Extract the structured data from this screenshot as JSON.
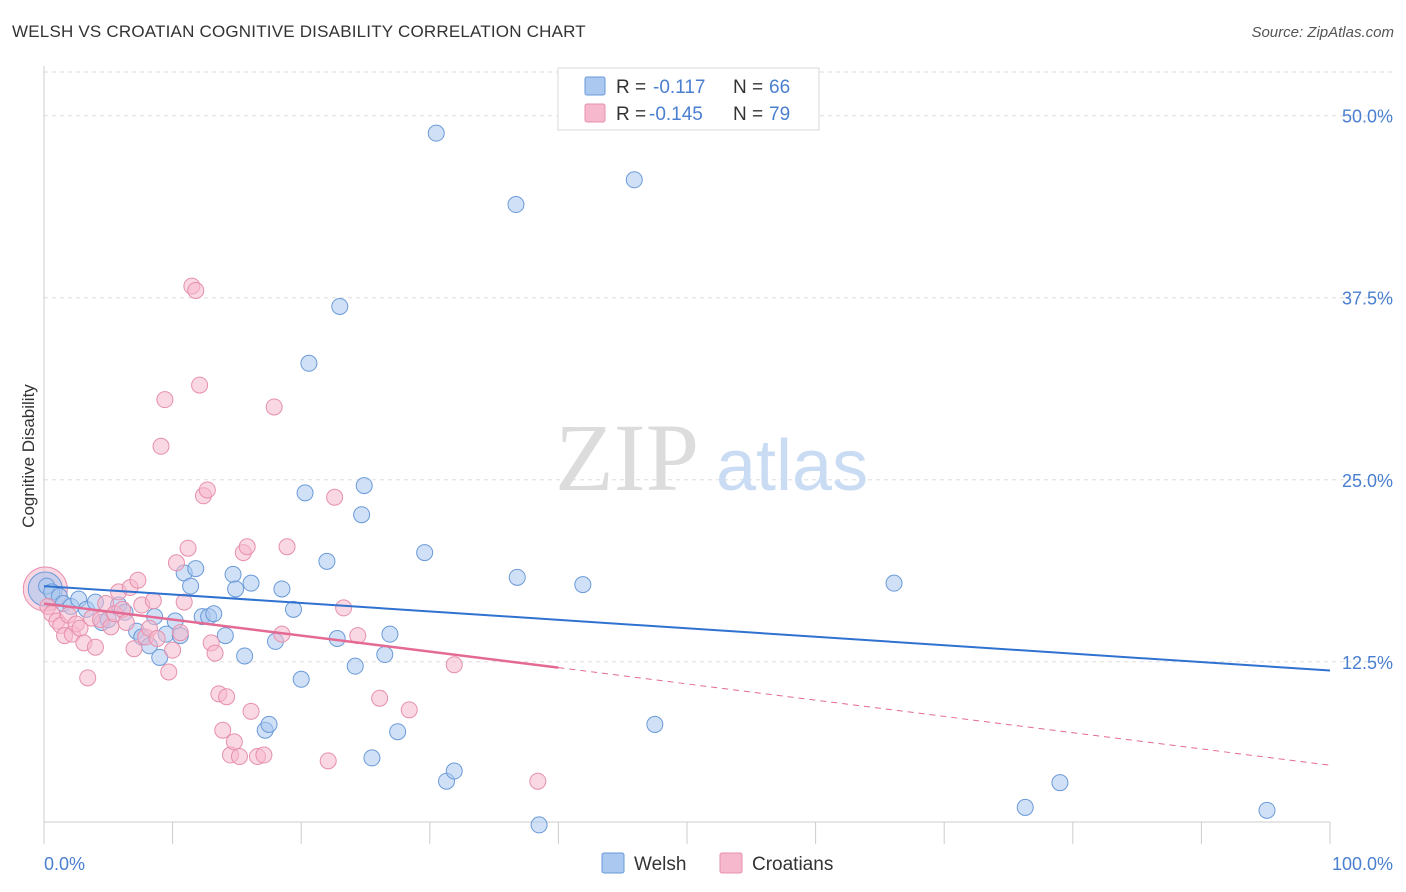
{
  "title": "WELSH VS CROATIAN COGNITIVE DISABILITY CORRELATION CHART",
  "source": "Source: ZipAtlas.com",
  "watermark": {
    "zip": "ZIP",
    "atlas": "atlas"
  },
  "colors": {
    "welsh_fill": "#aac8f0",
    "welsh_stroke": "#6a9ad8",
    "welsh_line": "#2f72d0",
    "croatian_fill": "#f6b8cc",
    "croatian_stroke": "#e690ac",
    "croatian_line": "#e46a94",
    "accent_text": "#4a7fd0",
    "grid": "#dddddd"
  },
  "legend_top": {
    "rows": [
      {
        "r_label": "R =",
        "r_value": "-0.117",
        "n_label": "N =",
        "n_value": "66"
      },
      {
        "r_label": "R =",
        "r_value": "-0.145",
        "n_label": "N =",
        "n_value": "79"
      }
    ]
  },
  "legend_bottom": [
    "Welsh",
    "Croatians"
  ],
  "chart_data": {
    "type": "scatter",
    "ylabel": "Cognitive Disability",
    "xlim": [
      0,
      100
    ],
    "ylim": [
      1.5,
      53
    ],
    "x_tick_labels": [
      "0.0%",
      "100.0%"
    ],
    "y_ticks": [
      12.5,
      25.0,
      37.5,
      50.0
    ],
    "y_tick_labels": [
      "12.5%",
      "25.0%",
      "37.5%",
      "50.0%"
    ],
    "grid": true,
    "legend_position": "top-center",
    "series": [
      {
        "name": "Welsh",
        "trend": {
          "x1": 0,
          "y1": 17.7,
          "x2": 100,
          "y2": 11.9
        },
        "points": [
          [
            0.2,
            17.7
          ],
          [
            0.6,
            17.3
          ],
          [
            1.2,
            17.0
          ],
          [
            1.5,
            16.5
          ],
          [
            2.1,
            16.3
          ],
          [
            2.7,
            16.8
          ],
          [
            3.3,
            16.1
          ],
          [
            4.0,
            16.6
          ],
          [
            4.5,
            15.2
          ],
          [
            5.0,
            15.4
          ],
          [
            5.8,
            16.4
          ],
          [
            6.3,
            15.9
          ],
          [
            7.2,
            14.6
          ],
          [
            7.6,
            14.2
          ],
          [
            8.2,
            13.6
          ],
          [
            8.6,
            15.6
          ],
          [
            9.0,
            12.8
          ],
          [
            9.5,
            14.4
          ],
          [
            10.2,
            15.3
          ],
          [
            10.6,
            14.3
          ],
          [
            10.9,
            18.6
          ],
          [
            11.4,
            17.7
          ],
          [
            11.8,
            18.9
          ],
          [
            12.3,
            15.6
          ],
          [
            12.8,
            15.6
          ],
          [
            13.2,
            15.8
          ],
          [
            14.1,
            14.3
          ],
          [
            14.7,
            18.5
          ],
          [
            14.9,
            17.5
          ],
          [
            15.6,
            12.9
          ],
          [
            16.1,
            17.9
          ],
          [
            17.2,
            7.8
          ],
          [
            17.5,
            8.2
          ],
          [
            18.0,
            13.9
          ],
          [
            18.5,
            17.5
          ],
          [
            19.4,
            16.1
          ],
          [
            20.0,
            11.3
          ],
          [
            20.3,
            24.1
          ],
          [
            20.6,
            33.0
          ],
          [
            22.0,
            19.4
          ],
          [
            22.8,
            14.1
          ],
          [
            23.0,
            36.9
          ],
          [
            24.2,
            12.2
          ],
          [
            24.7,
            22.6
          ],
          [
            24.9,
            24.6
          ],
          [
            25.5,
            5.9
          ],
          [
            26.5,
            13.0
          ],
          [
            26.9,
            14.4
          ],
          [
            27.5,
            7.7
          ],
          [
            29.6,
            20.0
          ],
          [
            31.3,
            4.3
          ],
          [
            31.9,
            5.0
          ],
          [
            30.5,
            48.8
          ],
          [
            36.7,
            43.9
          ],
          [
            36.8,
            18.3
          ],
          [
            38.5,
            1.3
          ],
          [
            41.9,
            17.8
          ],
          [
            45.9,
            45.6
          ],
          [
            47.5,
            8.2
          ],
          [
            66.1,
            17.9
          ],
          [
            76.3,
            2.5
          ],
          [
            79.0,
            4.2
          ],
          [
            95.1,
            2.3
          ]
        ]
      },
      {
        "name": "Croatians",
        "trend": {
          "x1": 0,
          "y1": 16.5,
          "x2": 40,
          "y2": 12.1
        },
        "trend_dashed": {
          "x1": 40,
          "y1": 12.1,
          "x2": 100,
          "y2": 5.4
        },
        "points": [
          [
            0.3,
            16.3
          ],
          [
            0.6,
            15.8
          ],
          [
            1.0,
            15.3
          ],
          [
            1.3,
            15.0
          ],
          [
            1.6,
            14.3
          ],
          [
            1.9,
            15.7
          ],
          [
            2.2,
            14.4
          ],
          [
            2.5,
            15.1
          ],
          [
            2.8,
            14.8
          ],
          [
            3.1,
            13.8
          ],
          [
            3.4,
            11.4
          ],
          [
            3.7,
            15.5
          ],
          [
            4.0,
            13.5
          ],
          [
            4.4,
            15.4
          ],
          [
            4.8,
            16.5
          ],
          [
            5.2,
            14.9
          ],
          [
            5.5,
            15.8
          ],
          [
            5.8,
            17.3
          ],
          [
            6.1,
            16.1
          ],
          [
            6.4,
            15.2
          ],
          [
            6.7,
            17.6
          ],
          [
            7.0,
            13.4
          ],
          [
            7.3,
            18.1
          ],
          [
            7.6,
            16.4
          ],
          [
            7.9,
            14.2
          ],
          [
            8.2,
            14.8
          ],
          [
            8.5,
            16.7
          ],
          [
            8.8,
            14.1
          ],
          [
            9.1,
            27.3
          ],
          [
            9.4,
            30.5
          ],
          [
            9.7,
            11.8
          ],
          [
            10.0,
            13.3
          ],
          [
            10.3,
            19.3
          ],
          [
            10.6,
            14.5
          ],
          [
            10.9,
            16.6
          ],
          [
            11.2,
            20.3
          ],
          [
            11.5,
            38.3
          ],
          [
            11.8,
            38.0
          ],
          [
            12.1,
            31.5
          ],
          [
            12.4,
            23.9
          ],
          [
            12.7,
            24.3
          ],
          [
            13.0,
            13.8
          ],
          [
            13.3,
            13.1
          ],
          [
            13.6,
            10.3
          ],
          [
            13.9,
            7.8
          ],
          [
            14.2,
            10.1
          ],
          [
            14.5,
            6.1
          ],
          [
            14.8,
            7.0
          ],
          [
            15.2,
            6.0
          ],
          [
            15.5,
            20.0
          ],
          [
            15.8,
            20.4
          ],
          [
            16.1,
            9.1
          ],
          [
            16.6,
            6.0
          ],
          [
            17.1,
            6.1
          ],
          [
            17.9,
            30.0
          ],
          [
            18.5,
            14.4
          ],
          [
            18.9,
            20.4
          ],
          [
            22.1,
            5.7
          ],
          [
            22.6,
            23.8
          ],
          [
            23.3,
            16.2
          ],
          [
            24.4,
            14.3
          ],
          [
            26.1,
            10.0
          ],
          [
            28.4,
            9.2
          ],
          [
            31.9,
            12.3
          ],
          [
            38.4,
            4.3
          ]
        ]
      }
    ]
  }
}
